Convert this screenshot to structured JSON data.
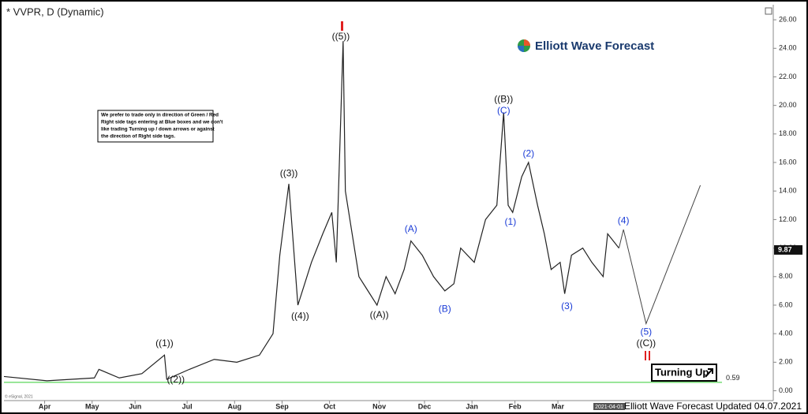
{
  "chart_data": {
    "type": "line",
    "title": "* VVPR, D (Dynamic)",
    "brand": "Elliott Wave Forecast",
    "notice": [
      "We prefer to trade only in direction of Green / Red",
      "Right side tags entering at Blue boxes and we don't",
      "like trading Turning up / down arrows or against",
      "the direction of Right side tags."
    ],
    "badge": "Turning Up",
    "footer": "Elliott Wave Forecast Updated 04.07.2021",
    "copyright": "© eSignal, 2021",
    "date_box": "2021-04-01",
    "color": "#222222",
    "x": [
      0,
      19,
      40,
      42,
      51,
      61,
      71,
      72,
      82,
      93,
      103,
      113,
      119,
      122,
      126,
      130,
      136,
      141,
      145,
      147,
      150,
      151,
      154,
      157,
      161,
      165,
      169,
      173,
      177,
      180,
      185,
      190,
      195,
      199,
      202,
      208,
      213,
      218,
      221,
      223,
      225,
      229,
      232,
      236,
      239,
      242,
      246,
      248,
      251,
      256,
      260,
      265,
      267,
      272
    ],
    "values": [
      1.0,
      0.7,
      0.9,
      1.5,
      0.9,
      1.2,
      2.5,
      0.8,
      1.5,
      2.2,
      2.0,
      2.5,
      4.0,
      9.5,
      14.5,
      6.0,
      9.0,
      11.0,
      12.5,
      9.0,
      24.5,
      14.0,
      11.0,
      8.0,
      7.0,
      6.0,
      8.0,
      6.8,
      8.5,
      10.5,
      9.5,
      8.0,
      7.0,
      7.5,
      10.0,
      9.0,
      12.0,
      13.0,
      19.5,
      13.0,
      12.5,
      15.0,
      16.0,
      13.0,
      11.0,
      8.5,
      9.0,
      6.8,
      9.5,
      10.0,
      9.0,
      8.0,
      11.0,
      10.0
    ],
    "projection": {
      "color": "#444444",
      "x": [
        272,
        274,
        284,
        308
      ],
      "values": [
        10.0,
        11.3,
        4.7,
        14.4
      ]
    },
    "support_level": 0.59,
    "support_color": "#33cc33",
    "last_price": 9.87,
    "annotations": [
      {
        "text": "((1))",
        "x": 71,
        "y": 3.3,
        "color": "#111111"
      },
      {
        "text": "((2))",
        "x": 76,
        "y": 0.77,
        "color": "#111111"
      },
      {
        "text": "((3))",
        "x": 126,
        "y": 15.2,
        "color": "#111111"
      },
      {
        "text": "((4))",
        "x": 131,
        "y": 5.2,
        "color": "#111111"
      },
      {
        "text": "((5))",
        "x": 149,
        "y": 24.8,
        "color": "#111111"
      },
      {
        "text": "((A))",
        "x": 166,
        "y": 5.3,
        "color": "#111111"
      },
      {
        "text": "(A)",
        "x": 180,
        "y": 11.3,
        "color": "#1a3bd6"
      },
      {
        "text": "(B)",
        "x": 195,
        "y": 5.7,
        "color": "#1a3bd6"
      },
      {
        "text": "((B))",
        "x": 221,
        "y": 20.4,
        "color": "#111111"
      },
      {
        "text": "(C)",
        "x": 221,
        "y": 19.6,
        "color": "#1a3bd6"
      },
      {
        "text": "(1)",
        "x": 224,
        "y": 11.8,
        "color": "#1a3bd6"
      },
      {
        "text": "(2)",
        "x": 232,
        "y": 16.6,
        "color": "#1a3bd6"
      },
      {
        "text": "(3)",
        "x": 249,
        "y": 5.9,
        "color": "#1a3bd6"
      },
      {
        "text": "(4)",
        "x": 274,
        "y": 11.9,
        "color": "#1a3bd6"
      },
      {
        "text": "(5)",
        "x": 284,
        "y": 4.1,
        "color": "#1a3bd6"
      },
      {
        "text": "((C))",
        "x": 284,
        "y": 3.3,
        "color": "#111111"
      }
    ],
    "xlim": [
      0,
      342
    ],
    "xticks": [
      {
        "value": 18,
        "label": "Apr"
      },
      {
        "value": 39,
        "label": "May"
      },
      {
        "value": 58,
        "label": "Jun"
      },
      {
        "value": 81,
        "label": "Jul"
      },
      {
        "value": 102,
        "label": "Aug"
      },
      {
        "value": 123,
        "label": "Sep"
      },
      {
        "value": 144,
        "label": "Oct"
      },
      {
        "value": 166,
        "label": "Nov"
      },
      {
        "value": 186,
        "label": "Dec"
      },
      {
        "value": 207,
        "label": "Jan"
      },
      {
        "value": 226,
        "label": "Feb"
      },
      {
        "value": 245,
        "label": "Mar"
      }
    ],
    "ylim": [
      -0.8,
      27
    ],
    "yticks": [
      {
        "value": 0,
        "label": "0.00"
      },
      {
        "value": 2,
        "label": "2.00"
      },
      {
        "value": 4,
        "label": "4.00"
      },
      {
        "value": 6,
        "label": "6.00"
      },
      {
        "value": 8,
        "label": "8.00"
      },
      {
        "value": 10,
        "label": "10.00"
      },
      {
        "value": 12,
        "label": "12.00"
      },
      {
        "value": 14,
        "label": "14.00"
      },
      {
        "value": 16,
        "label": "16.00"
      },
      {
        "value": 18,
        "label": "18.00"
      },
      {
        "value": 20,
        "label": "20.00"
      },
      {
        "value": 22,
        "label": "22.00"
      },
      {
        "value": 24,
        "label": "24.00"
      },
      {
        "value": 26,
        "label": "26.00"
      }
    ]
  }
}
